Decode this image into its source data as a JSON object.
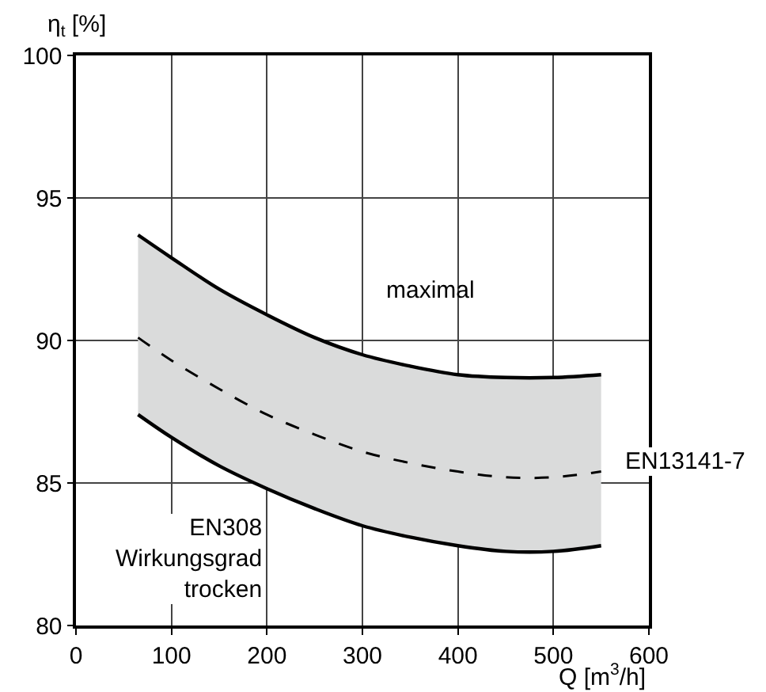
{
  "chart_data": {
    "type": "line",
    "xlabel": "Q [m$^{3}$/h]",
    "ylabel": "η$_{t}$ [%]",
    "x": [
      65,
      100,
      150,
      200,
      250,
      300,
      350,
      400,
      450,
      500,
      550
    ],
    "series": [
      {
        "color": "#000000",
        "line_style": "solid",
        "values": [
          93.7,
          92.9,
          91.8,
          90.9,
          90.1,
          89.5,
          89.1,
          88.8,
          88.7,
          88.7,
          88.8
        ]
      },
      {
        "color": "#000000",
        "line_style": "dashed",
        "values": [
          90.1,
          89.3,
          88.3,
          87.4,
          86.7,
          86.1,
          85.7,
          85.4,
          85.2,
          85.2,
          85.4
        ],
        "lower": [
          87.4,
          86.6,
          85.6,
          84.8,
          84.1,
          83.5,
          83.1,
          82.8,
          82.6,
          82.6,
          82.8
        ],
        "upper": [
          93.7,
          92.9,
          91.8,
          90.9,
          90.1,
          89.5,
          89.1,
          88.8,
          88.7,
          88.7,
          88.8
        ]
      },
      {
        "color": "#000000",
        "line_style": "solid",
        "values": [
          87.4,
          86.6,
          85.6,
          84.8,
          84.1,
          83.5,
          83.1,
          82.8,
          82.6,
          82.6,
          82.8
        ]
      }
    ],
    "xlim": [
      0,
      600
    ],
    "ylim": [
      80,
      100
    ],
    "xticks": [
      0,
      100,
      200,
      300,
      400,
      500,
      600
    ],
    "yticks": [
      80,
      85,
      90,
      95,
      100
    ],
    "grid": true,
    "annotations": [
      "maximal",
      "EN308\nWirkungsgrad\ntrocken",
      "EN13141-7"
    ]
  }
}
